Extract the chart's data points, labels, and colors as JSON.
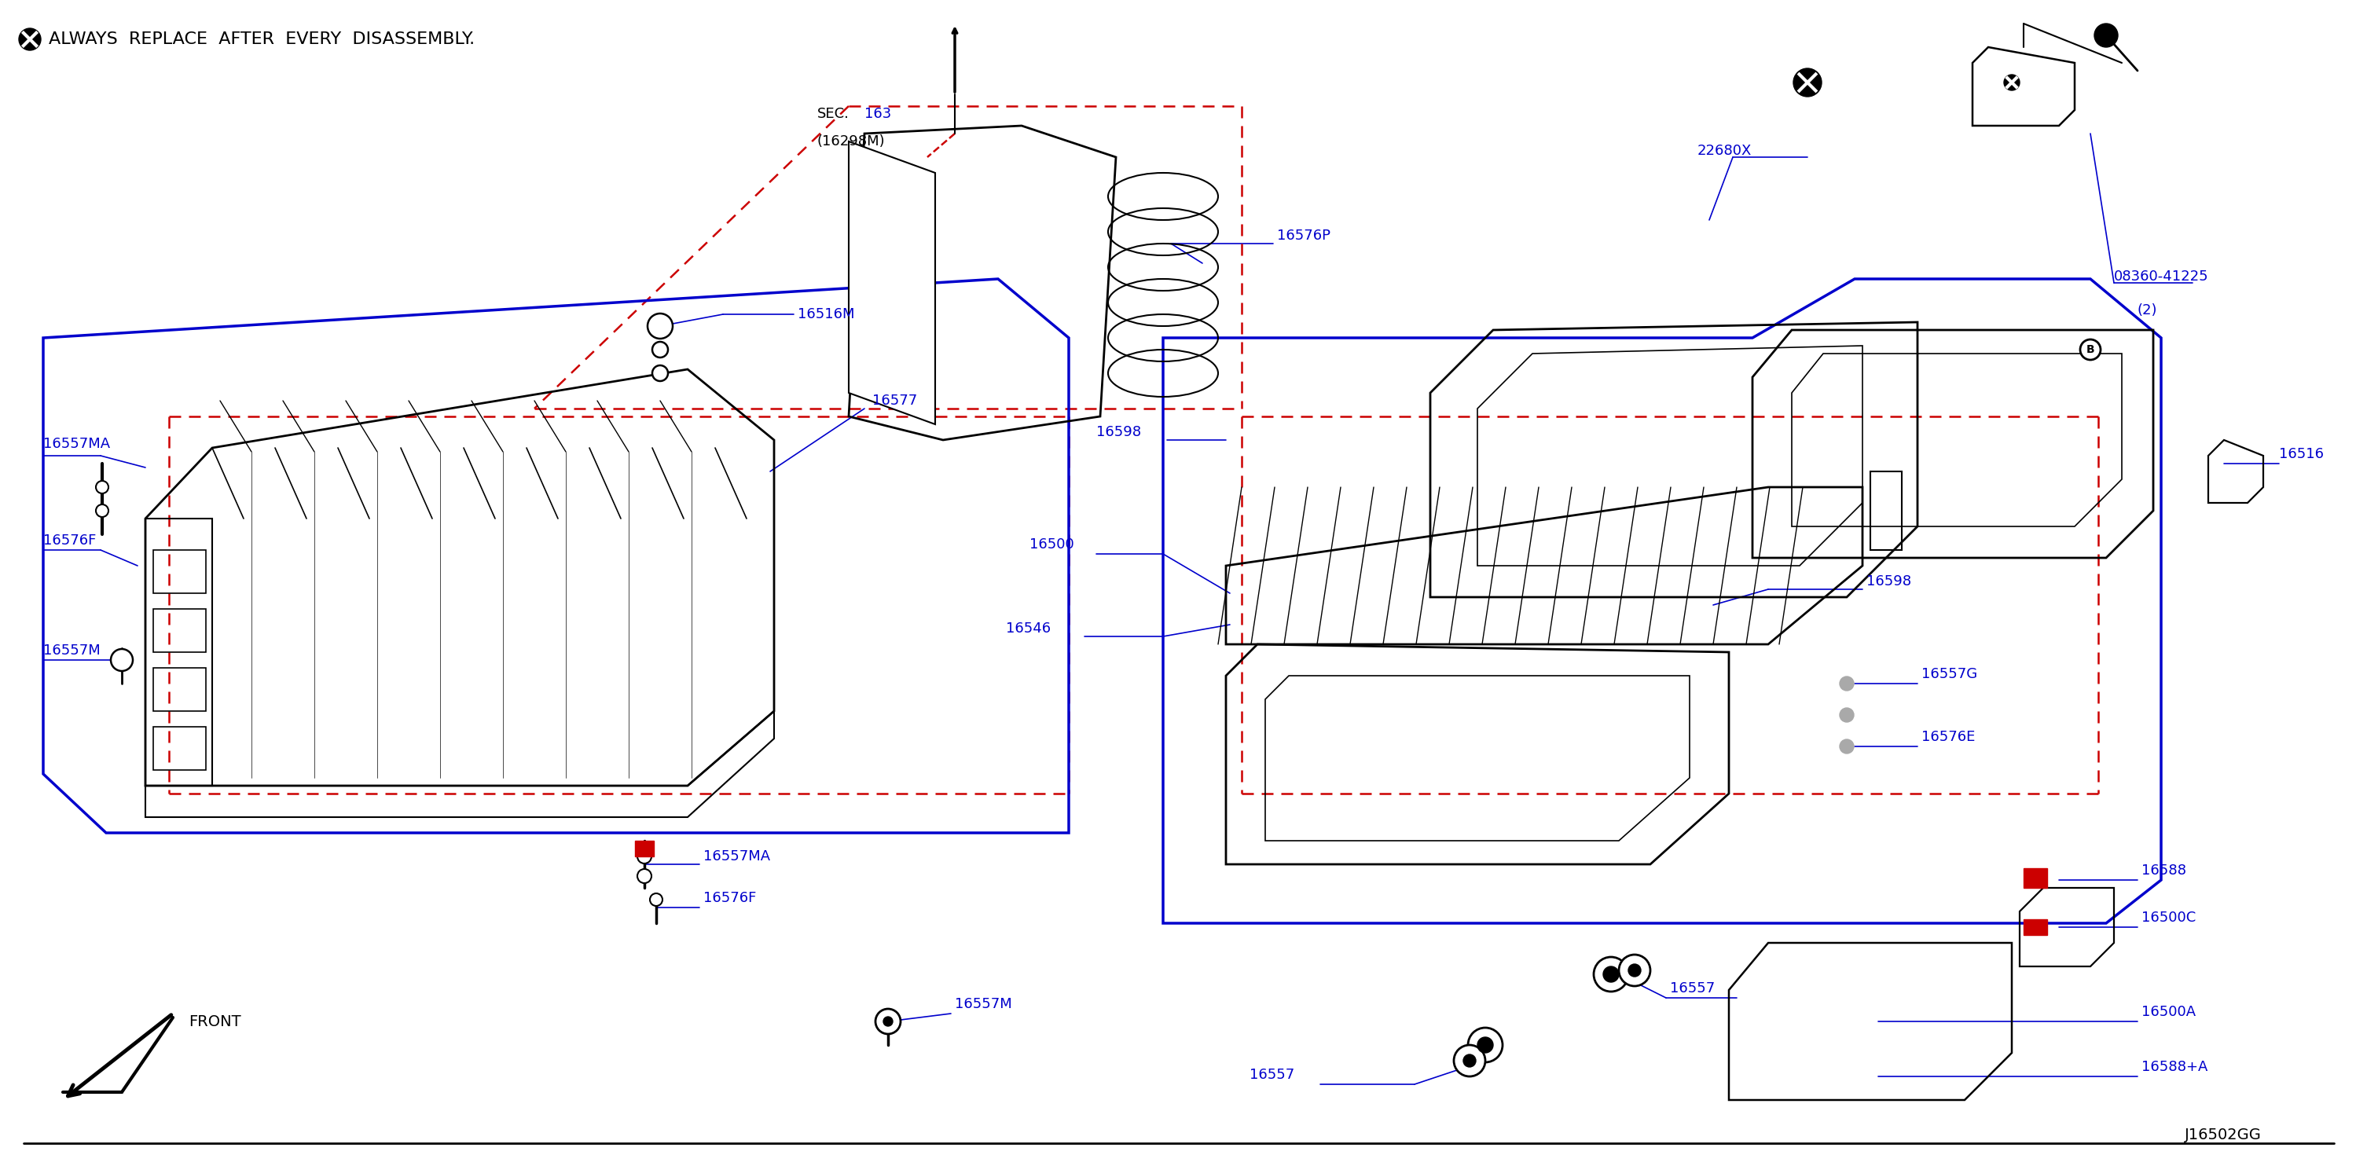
{
  "bg_color": "#ffffff",
  "black": "#000000",
  "blue": "#0000cc",
  "red": "#cc0000",
  "dred": "#cc0000",
  "figw": 29.98,
  "figh": 14.84,
  "title": "ALWAYS  REPLACE  AFTER  EVERY  DISASSEMBLY.",
  "diagram_code": "J16502GG",
  "sec_text": "SEC.  163",
  "sec_sub": "(16298M)",
  "front_text": "FRONT"
}
